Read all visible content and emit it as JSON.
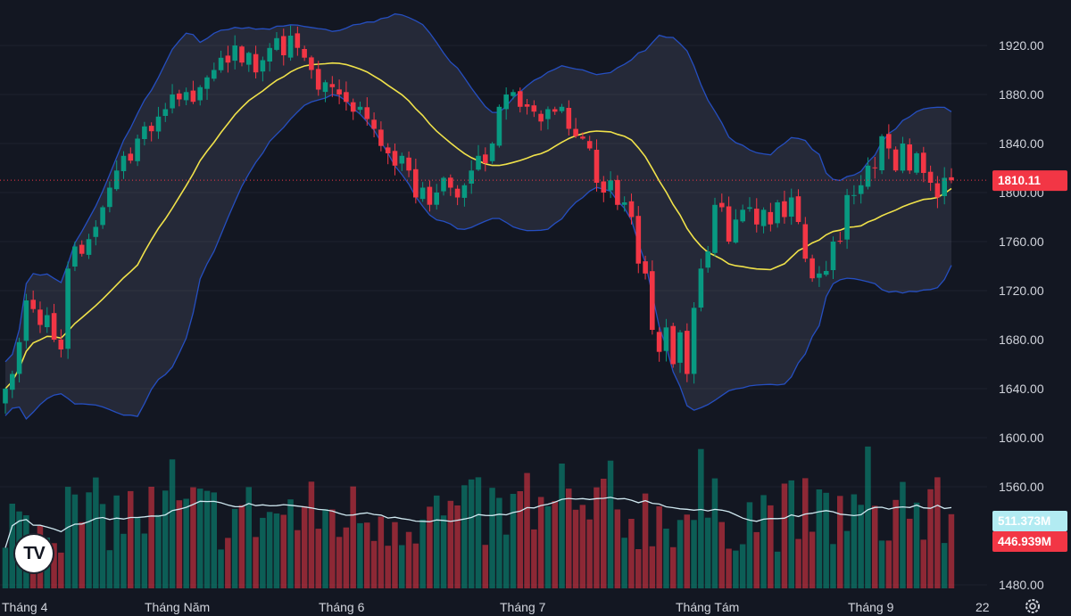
{
  "chart_data": {
    "type": "candlestick",
    "price_axis": {
      "ticks": [
        "1920.00",
        "1880.00",
        "1840.00",
        "1800.00",
        "1760.00",
        "1720.00",
        "1680.00",
        "1640.00",
        "1600.00",
        "1560.00",
        "1480.00"
      ],
      "range": [
        1478,
        1950
      ]
    },
    "time_axis": {
      "labels": [
        "Tháng 4",
        "Tháng Năm",
        "Tháng 6",
        "Tháng 7",
        "Tháng Tám",
        "Tháng 9",
        "22"
      ]
    },
    "last_price": {
      "value": "1810.11",
      "color": "#f23645"
    },
    "volume_ma_badge": {
      "value": "511.373M",
      "color": "#b2ebf2"
    },
    "volume_badge": {
      "value": "446.939M",
      "color": "#f23645"
    },
    "colors": {
      "up": "#089981",
      "down": "#f23645",
      "ma": "#f0e24a",
      "band": "#2962ff",
      "volume_ma": "#cfe8f0"
    },
    "closes": [
      1640,
      1652,
      1678,
      1712,
      1705,
      1692,
      1700,
      1680,
      1672,
      1738,
      1756,
      1750,
      1762,
      1772,
      1788,
      1804,
      1818,
      1830,
      1826,
      1844,
      1854,
      1850,
      1862,
      1868,
      1880,
      1876,
      1882,
      1874,
      1886,
      1894,
      1900,
      1910,
      1906,
      1920,
      1906,
      1914,
      1898,
      1908,
      1918,
      1926,
      1912,
      1928,
      1918,
      1910,
      1900,
      1884,
      1890,
      1886,
      1880,
      1874,
      1866,
      1870,
      1860,
      1852,
      1838,
      1832,
      1822,
      1830,
      1818,
      1796,
      1804,
      1790,
      1800,
      1812,
      1804,
      1796,
      1806,
      1818,
      1830,
      1824,
      1840,
      1870,
      1880,
      1882,
      1870,
      1870,
      1866,
      1858,
      1868,
      1866,
      1870,
      1852,
      1846,
      1844,
      1836,
      1808,
      1800,
      1810,
      1790,
      1792,
      1780,
      1742,
      1734,
      1688,
      1670,
      1690,
      1660,
      1686,
      1652,
      1706,
      1738,
      1752,
      1790,
      1788,
      1760,
      1778,
      1786,
      1788,
      1774,
      1786,
      1774,
      1792,
      1780,
      1796,
      1776,
      1746,
      1730,
      1734,
      1736,
      1760,
      1760,
      1798,
      1798,
      1806,
      1822,
      1820,
      1846,
      1836,
      1818,
      1840,
      1818,
      1832,
      1816,
      1808,
      1796,
      1812,
      1810
    ]
  }
}
